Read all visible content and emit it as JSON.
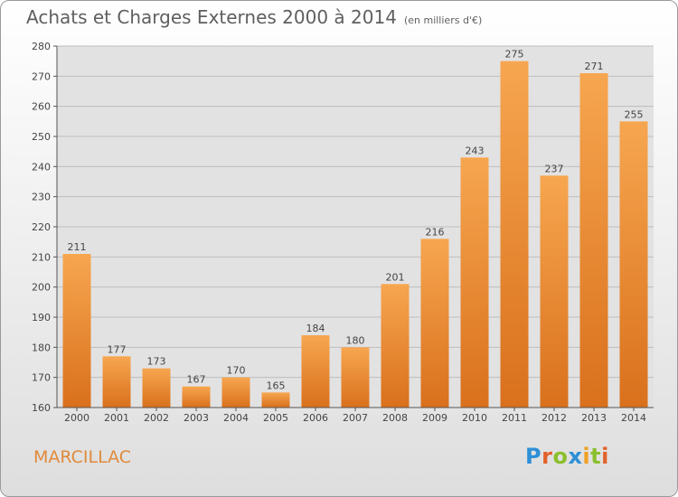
{
  "title": "Achats et Charges Externes 2000 à 2014",
  "unit": "(en milliers d'€)",
  "commune": "MARCILLAC",
  "logo": {
    "letters": [
      {
        "ch": "P",
        "color": "#2e8fd6"
      },
      {
        "ch": "r",
        "color": "#e2622a"
      },
      {
        "ch": "o",
        "color": "#8bbf2d"
      },
      {
        "ch": "x",
        "color": "#2e8fd6"
      },
      {
        "ch": "i",
        "color": "#f0a023"
      },
      {
        "ch": "t",
        "color": "#8bbf2d"
      },
      {
        "ch": "i",
        "color": "#e2622a"
      }
    ]
  },
  "chart_data": {
    "type": "bar",
    "title": "Achats et Charges Externes 2000 à 2014",
    "subtitle": "(en milliers d'€)",
    "categories": [
      "2000",
      "2001",
      "2002",
      "2003",
      "2004",
      "2005",
      "2006",
      "2007",
      "2008",
      "2009",
      "2010",
      "2011",
      "2012",
      "2013",
      "2014"
    ],
    "values": [
      211,
      177,
      173,
      167,
      170,
      165,
      184,
      180,
      201,
      216,
      243,
      275,
      237,
      271,
      255
    ],
    "ylim": [
      160,
      280
    ],
    "yticks": [
      160,
      170,
      180,
      190,
      200,
      210,
      220,
      230,
      240,
      250,
      260,
      270,
      280
    ],
    "grid": true,
    "bar_color": "#f0913c"
  }
}
